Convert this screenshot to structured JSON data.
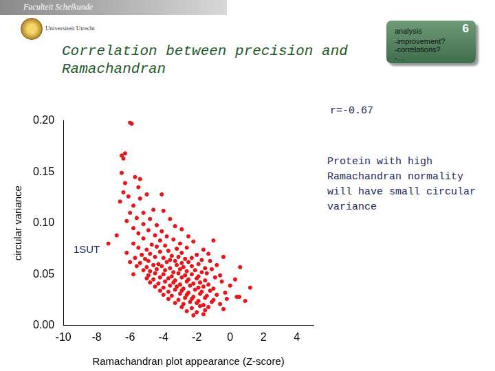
{
  "header": {
    "logo_texts": [
      "Faculteit Scheikunde",
      "Universiteit Utrecht"
    ]
  },
  "box": {
    "title": "analysis",
    "number": "6",
    "items": [
      "-improvement?",
      "-correlations?",
      "-…"
    ]
  },
  "chart_data": {
    "type": "scatter",
    "title": [
      "Correlation between precision and",
      "Ramachandran"
    ],
    "x_label": "Ramachandran plot appearance (Z-score)",
    "y_label": "circular variance",
    "annotations": [
      {
        "text": "1SUT",
        "x": -8.6,
        "y": 0.074
      },
      {
        "text": "r=-0.67"
      },
      {
        "text": "Protein with high Ramachandran normality will have small circular variance"
      }
    ],
    "color": "#e8161b",
    "marker": "circle",
    "grid": false,
    "xlim": [
      -10,
      5
    ],
    "xticks": [
      -10,
      -8,
      -6,
      -4,
      -2,
      0,
      2,
      4
    ],
    "ylim": [
      0,
      0.2
    ],
    "yticks": [
      {
        "value": 0,
        "label": "0.00"
      },
      {
        "value": 0.05,
        "label": "0.05"
      },
      {
        "value": 0.1,
        "label": "0.10"
      },
      {
        "value": 0.15,
        "label": "0.15"
      },
      {
        "value": 0.2,
        "label": "0.20"
      }
    ],
    "x": [
      -6.0,
      -5.9,
      -6.5,
      -6.3,
      -6.4,
      -6.5,
      -5.7,
      -5.4,
      -6.3,
      -5.5,
      -6.4,
      -6.1,
      -5.4,
      -5.0,
      -4.1,
      -6.6,
      -5.8,
      -4.6,
      -5.2,
      -6.0,
      -4.0,
      -5.6,
      -4.8,
      -3.6,
      -6.2,
      -5.2,
      -4.4,
      -3.3,
      -5.8,
      -4.9,
      -4.1,
      -2.9,
      -5.5,
      -4.5,
      -3.8,
      -5.2,
      -4.2,
      -3.4,
      -2.5,
      -6.8,
      -7.3,
      -5.8,
      -4.7,
      -3.9,
      -3.0,
      -2.2,
      -1.0,
      -5.5,
      -5.0,
      -4.4,
      -3.7,
      -3.2,
      -2.6,
      -1.6,
      -6.2,
      -5.3,
      -4.8,
      -4.2,
      -3.5,
      -2.9,
      -2.0,
      -1.3,
      -5.7,
      -5.1,
      -4.5,
      -4.0,
      -3.6,
      -3.1,
      -2.7,
      -2.3,
      -1.7,
      -0.4,
      -6.0,
      -5.4,
      -4.9,
      -4.3,
      -3.8,
      -3.3,
      -2.9,
      -2.5,
      -1.9,
      -1.2,
      -5.6,
      -5.0,
      -4.6,
      -4.1,
      -3.6,
      -3.2,
      -2.8,
      -2.3,
      -1.5,
      -0.8,
      0.6,
      -5.2,
      -4.8,
      -4.4,
      -3.9,
      -3.4,
      -3.0,
      -2.6,
      -2.1,
      -1.7,
      -1.1,
      -5.8,
      -4.9,
      -4.5,
      -4.0,
      -3.5,
      -3.1,
      -2.7,
      -2.3,
      -1.9,
      -1.4,
      -0.6,
      -5.0,
      -4.6,
      -4.2,
      -3.7,
      -3.3,
      -2.9,
      -2.5,
      -2.0,
      -1.5,
      -0.9,
      0.3,
      -4.8,
      -4.3,
      -3.9,
      -3.4,
      -3.0,
      -2.6,
      -2.2,
      -1.8,
      -1.3,
      -0.5,
      -4.5,
      -4.0,
      -3.6,
      -3.2,
      -2.8,
      -2.4,
      -1.9,
      -1.6,
      -1.0,
      0.0,
      1.2,
      -4.2,
      -3.7,
      -3.3,
      -2.9,
      -2.5,
      -2.1,
      -1.7,
      -1.2,
      -0.3,
      -4.0,
      -3.5,
      -3.0,
      -2.6,
      -2.2,
      -1.8,
      -1.4,
      -0.8,
      0.4,
      -3.7,
      -3.1,
      -2.7,
      -2.3,
      -1.9,
      -1.5,
      -1.0,
      -0.2,
      0.9,
      -3.3,
      -2.8,
      -2.4,
      -2.0,
      -1.6,
      -1.1,
      -0.6,
      -2.9,
      -2.3,
      -1.8,
      -1.3,
      -0.4,
      -2.6,
      -2.0,
      -1.5,
      -2.2,
      -1.6,
      0.55
    ],
    "values": [
      0.198,
      0.197,
      0.166,
      0.168,
      0.163,
      0.149,
      0.145,
      0.143,
      0.139,
      0.135,
      0.13,
      0.126,
      0.124,
      0.128,
      0.128,
      0.121,
      0.117,
      0.113,
      0.11,
      0.11,
      0.112,
      0.105,
      0.104,
      0.104,
      0.102,
      0.099,
      0.098,
      0.097,
      0.095,
      0.093,
      0.092,
      0.094,
      0.09,
      0.088,
      0.087,
      0.085,
      0.083,
      0.084,
      0.087,
      0.088,
      0.08,
      0.08,
      0.079,
      0.078,
      0.08,
      0.082,
      0.083,
      0.076,
      0.074,
      0.077,
      0.073,
      0.075,
      0.076,
      0.074,
      0.071,
      0.069,
      0.07,
      0.072,
      0.068,
      0.071,
      0.069,
      0.07,
      0.066,
      0.065,
      0.067,
      0.066,
      0.064,
      0.067,
      0.065,
      0.066,
      0.064,
      0.067,
      0.062,
      0.061,
      0.063,
      0.06,
      0.062,
      0.063,
      0.061,
      0.062,
      0.06,
      0.063,
      0.058,
      0.057,
      0.059,
      0.058,
      0.056,
      0.059,
      0.057,
      0.058,
      0.056,
      0.059,
      0.057,
      0.054,
      0.053,
      0.055,
      0.054,
      0.052,
      0.055,
      0.053,
      0.054,
      0.052,
      0.055,
      0.05,
      0.049,
      0.051,
      0.05,
      0.048,
      0.051,
      0.049,
      0.05,
      0.048,
      0.051,
      0.049,
      0.046,
      0.045,
      0.047,
      0.046,
      0.044,
      0.047,
      0.045,
      0.046,
      0.044,
      0.047,
      0.045,
      0.042,
      0.041,
      0.043,
      0.042,
      0.04,
      0.043,
      0.041,
      0.042,
      0.04,
      0.043,
      0.038,
      0.037,
      0.039,
      0.038,
      0.036,
      0.039,
      0.037,
      0.038,
      0.036,
      0.039,
      0.037,
      0.034,
      0.033,
      0.035,
      0.034,
      0.032,
      0.035,
      0.033,
      0.034,
      0.032,
      0.03,
      0.029,
      0.031,
      0.03,
      0.028,
      0.031,
      0.029,
      0.03,
      0.028,
      0.026,
      0.025,
      0.027,
      0.026,
      0.024,
      0.027,
      0.025,
      0.026,
      0.024,
      0.022,
      0.021,
      0.023,
      0.022,
      0.02,
      0.023,
      0.021,
      0.018,
      0.017,
      0.019,
      0.018,
      0.016,
      0.014,
      0.013,
      0.015,
      0.01,
      0.011,
      0.028
    ]
  }
}
